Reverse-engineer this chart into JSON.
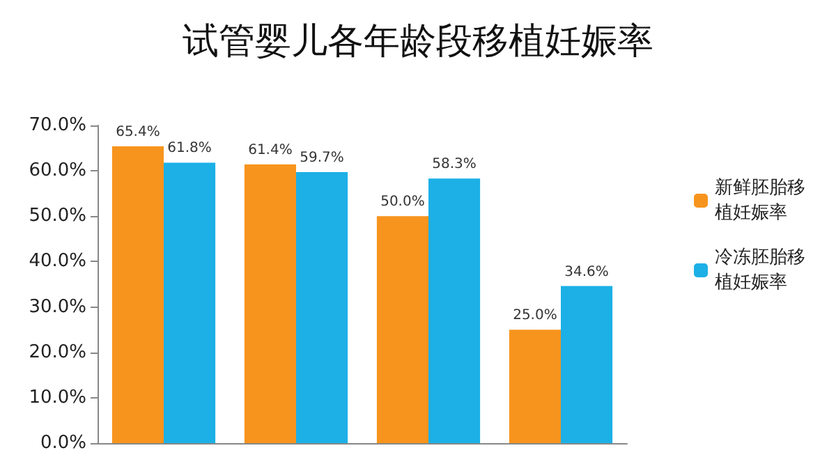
{
  "chart_data": {
    "type": "bar",
    "title": "试管婴儿各年龄段移植妊娠率",
    "categories": [
      null,
      null,
      null,
      null
    ],
    "series": [
      {
        "name": "新鲜胚胎移植妊娠率",
        "color": "#f7941d",
        "values": [
          65.4,
          61.4,
          50.0,
          25.0
        ],
        "value_labels": [
          "65.4%",
          "61.4%",
          "50.0%",
          "25.0%"
        ]
      },
      {
        "name": "冷冻胚胎移植妊娠率",
        "color": "#1cb0e6",
        "values": [
          61.8,
          59.7,
          58.3,
          34.6
        ],
        "value_labels": [
          "61.8%",
          "59.7%",
          "58.3%",
          "34.6%"
        ]
      }
    ],
    "ylim": [
      0,
      70
    ],
    "yticks": [
      {
        "value": 0,
        "label": "0.0%"
      },
      {
        "value": 10,
        "label": "10.0%"
      },
      {
        "value": 20,
        "label": "20.0%"
      },
      {
        "value": 30,
        "label": "30.0%"
      },
      {
        "value": 40,
        "label": "40.0%"
      },
      {
        "value": 50,
        "label": "50.0%"
      },
      {
        "value": 60,
        "label": "60.0%"
      },
      {
        "value": 70,
        "label": "70.0%"
      }
    ],
    "grid": false,
    "legend": "right"
  }
}
